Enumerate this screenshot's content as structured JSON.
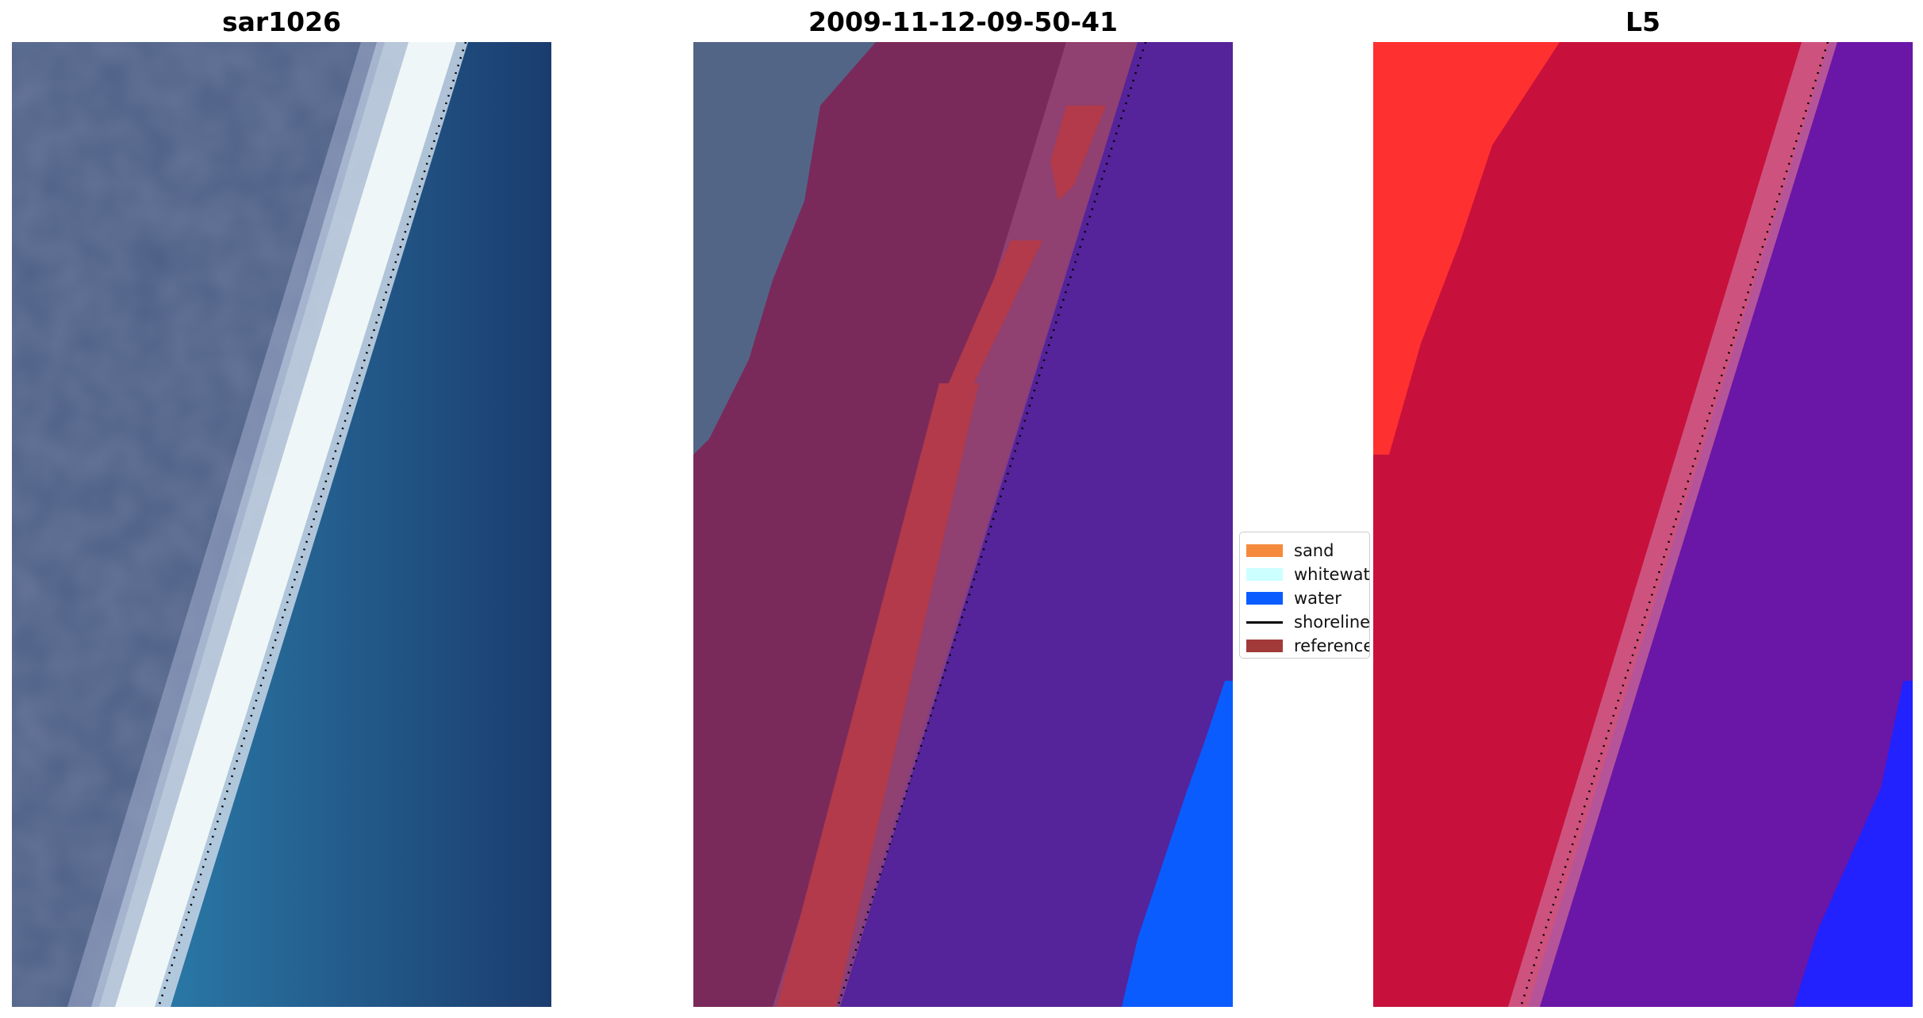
{
  "panels": [
    {
      "title": "sar1026"
    },
    {
      "title": "2009-11-12-09-50-41"
    },
    {
      "title": "L5"
    }
  ],
  "legend": {
    "items": [
      {
        "label": "sand",
        "color": "#f58a3c",
        "kind": "patch"
      },
      {
        "label": "whitewater",
        "color": "#ccffff",
        "kind": "patch"
      },
      {
        "label": "water",
        "color": "#0a5cff",
        "kind": "patch"
      },
      {
        "label": "shoreline",
        "color": "#000000",
        "kind": "line"
      },
      {
        "label": "reference",
        "color": "#a23a3a",
        "kind": "patch"
      }
    ]
  },
  "colors": {
    "land_rgb": "#4c5e86",
    "water_rgb": "#1e66a0",
    "deep_water_rgb": "#1d3a6a",
    "beach_rgb": "#e6f0f4",
    "sand_overlay": "#7a2a5a",
    "reference_overlay": "#b23a4a",
    "water_overlay": "#55239a",
    "water_pure": "#0a5cff",
    "l5_sand": "#c8103c",
    "l5_land": "#ff3030",
    "l5_water": "#6a16a6",
    "l5_deep_water": "#2222ff"
  }
}
